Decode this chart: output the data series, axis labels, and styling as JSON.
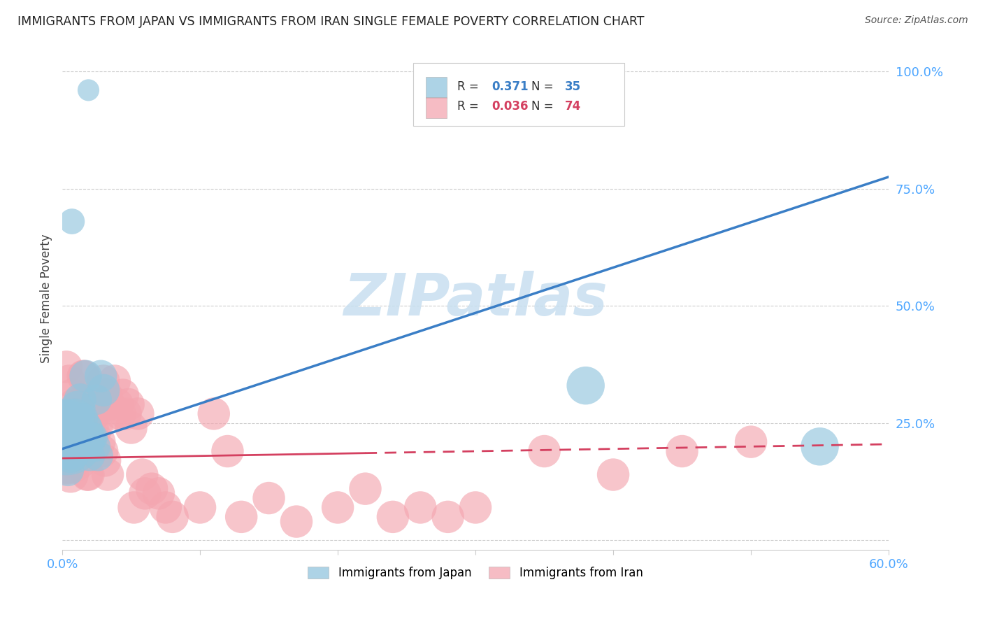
{
  "title": "IMMIGRANTS FROM JAPAN VS IMMIGRANTS FROM IRAN SINGLE FEMALE POVERTY CORRELATION CHART",
  "source": "Source: ZipAtlas.com",
  "tick_color": "#4da6ff",
  "ylabel": "Single Female Poverty",
  "xlim": [
    0.0,
    0.6
  ],
  "ylim": [
    -0.02,
    1.05
  ],
  "x_ticks": [
    0.0,
    0.1,
    0.2,
    0.3,
    0.4,
    0.5,
    0.6
  ],
  "x_tick_labels": [
    "0.0%",
    "",
    "",
    "",
    "",
    "",
    "60.0%"
  ],
  "y_ticks": [
    0.0,
    0.25,
    0.5,
    0.75,
    1.0
  ],
  "y_tick_labels": [
    "",
    "25.0%",
    "50.0%",
    "75.0%",
    "100.0%"
  ],
  "japan_color": "#92c5de",
  "iran_color": "#f4a6b0",
  "japan_line_color": "#3a7ec6",
  "iran_line_color": "#d44060",
  "japan_R": 0.371,
  "japan_N": 35,
  "iran_R": 0.036,
  "iran_N": 74,
  "watermark": "ZIPatlas",
  "watermark_color": "#c8dff0",
  "japan_legend_label": "Immigrants from Japan",
  "iran_legend_label": "Immigrants from Iran",
  "japan_line_x": [
    0.0,
    0.6
  ],
  "japan_line_y": [
    0.195,
    0.775
  ],
  "iran_line_x": [
    0.0,
    0.6
  ],
  "iran_line_y": [
    0.175,
    0.205
  ],
  "iran_line_solid_end": 0.22,
  "japan_scatter_x": [
    0.007,
    0.019,
    0.003,
    0.002,
    0.005,
    0.009,
    0.011,
    0.006,
    0.004,
    0.008,
    0.013,
    0.017,
    0.021,
    0.025,
    0.015,
    0.012,
    0.01,
    0.016,
    0.02,
    0.014,
    0.018,
    0.022,
    0.024,
    0.026,
    0.028,
    0.001,
    0.003,
    0.006,
    0.008,
    0.01,
    0.012,
    0.014,
    0.03,
    0.55,
    0.38
  ],
  "japan_scatter_y": [
    0.68,
    0.96,
    0.22,
    0.24,
    0.2,
    0.26,
    0.28,
    0.18,
    0.15,
    0.23,
    0.3,
    0.35,
    0.22,
    0.3,
    0.26,
    0.22,
    0.24,
    0.2,
    0.18,
    0.22,
    0.24,
    0.22,
    0.2,
    0.18,
    0.35,
    0.22,
    0.2,
    0.25,
    0.18,
    0.22,
    0.2,
    0.22,
    0.32,
    0.2,
    0.33
  ],
  "japan_scatter_size": [
    25,
    18,
    220,
    120,
    80,
    60,
    50,
    45,
    40,
    50,
    40,
    40,
    35,
    35,
    35,
    35,
    35,
    35,
    35,
    35,
    35,
    35,
    35,
    35,
    40,
    35,
    35,
    40,
    35,
    35,
    35,
    35,
    40,
    55,
    55
  ],
  "iran_scatter_x": [
    0.002,
    0.003,
    0.004,
    0.005,
    0.006,
    0.007,
    0.008,
    0.009,
    0.01,
    0.011,
    0.012,
    0.013,
    0.014,
    0.015,
    0.016,
    0.017,
    0.018,
    0.019,
    0.02,
    0.022,
    0.024,
    0.026,
    0.028,
    0.03,
    0.032,
    0.034,
    0.036,
    0.038,
    0.04,
    0.042,
    0.044,
    0.046,
    0.05,
    0.055,
    0.06,
    0.065,
    0.07,
    0.075,
    0.08,
    0.1,
    0.12,
    0.13,
    0.15,
    0.17,
    0.2,
    0.22,
    0.24,
    0.26,
    0.28,
    0.3,
    0.35,
    0.4,
    0.45,
    0.5,
    0.003,
    0.005,
    0.007,
    0.009,
    0.011,
    0.013,
    0.015,
    0.017,
    0.019,
    0.021,
    0.023,
    0.025,
    0.027,
    0.029,
    0.031,
    0.033,
    0.048,
    0.052,
    0.058,
    0.11
  ],
  "iran_scatter_y": [
    0.2,
    0.17,
    0.19,
    0.18,
    0.14,
    0.17,
    0.17,
    0.21,
    0.21,
    0.24,
    0.24,
    0.29,
    0.29,
    0.35,
    0.35,
    0.3,
    0.14,
    0.14,
    0.21,
    0.24,
    0.27,
    0.29,
    0.29,
    0.34,
    0.31,
    0.29,
    0.27,
    0.34,
    0.29,
    0.27,
    0.31,
    0.27,
    0.24,
    0.27,
    0.1,
    0.11,
    0.1,
    0.07,
    0.05,
    0.07,
    0.19,
    0.05,
    0.09,
    0.04,
    0.07,
    0.11,
    0.05,
    0.07,
    0.05,
    0.07,
    0.19,
    0.14,
    0.19,
    0.21,
    0.37,
    0.34,
    0.31,
    0.29,
    0.27,
    0.29,
    0.27,
    0.24,
    0.21,
    0.29,
    0.27,
    0.24,
    0.21,
    0.19,
    0.17,
    0.14,
    0.29,
    0.07,
    0.14,
    0.27
  ],
  "iran_scatter_size": [
    220,
    80,
    60,
    55,
    50,
    45,
    40,
    40,
    40,
    40,
    40,
    40,
    40,
    40,
    40,
    40,
    40,
    40,
    40,
    40,
    40,
    40,
    40,
    40,
    40,
    40,
    40,
    40,
    40,
    40,
    40,
    40,
    40,
    40,
    40,
    40,
    40,
    40,
    40,
    40,
    40,
    40,
    40,
    40,
    40,
    40,
    40,
    40,
    40,
    40,
    40,
    40,
    40,
    40,
    40,
    40,
    40,
    40,
    40,
    40,
    40,
    40,
    40,
    40,
    40,
    40,
    40,
    40,
    40,
    40,
    40,
    40,
    40,
    40
  ]
}
